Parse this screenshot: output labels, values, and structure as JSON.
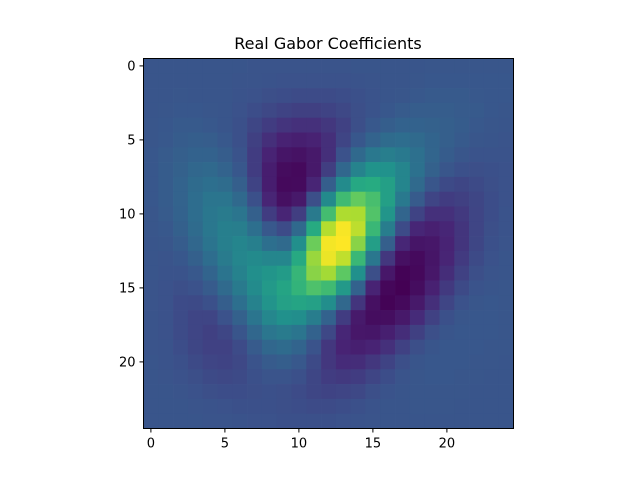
{
  "chart_data": {
    "type": "heatmap",
    "title": "Real Gabor Coefficients",
    "xlabel": "",
    "ylabel": "",
    "colormap": "viridis",
    "rows": 25,
    "cols": 25,
    "xlim": [
      -0.5,
      24.5
    ],
    "ylim": [
      24.5,
      -0.5
    ],
    "x_ticks": [
      0,
      5,
      10,
      15,
      20
    ],
    "y_ticks": [
      0,
      5,
      10,
      15,
      20
    ],
    "x_tick_labels": [
      "0",
      "5",
      "10",
      "15",
      "20"
    ],
    "y_tick_labels": [
      "0",
      "5",
      "10",
      "15",
      "20"
    ],
    "grid": false,
    "legend": false,
    "values": [
      [
        0.0,
        0.0,
        0.0,
        -0.0,
        -0.0,
        -0.0,
        -0.0,
        -0.001,
        -0.001,
        -0.001,
        -0.001,
        -0.001,
        -0.001,
        -0.001,
        -0.0,
        -0.0,
        -0.0,
        0.0,
        0.0,
        0.001,
        0.001,
        0.001,
        0.001,
        0.001,
        0.001
      ],
      [
        0.0,
        0.0,
        0.0,
        -0.0,
        -0.0,
        -0.0,
        -0.001,
        -0.001,
        -0.002,
        -0.003,
        -0.003,
        -0.003,
        -0.003,
        -0.003,
        -0.002,
        -0.001,
        -0.0,
        0.0,
        0.001,
        0.002,
        0.002,
        0.002,
        0.002,
        0.002,
        0.002
      ],
      [
        0.0,
        0.0,
        0.001,
        0.0,
        0.0,
        -0.0,
        -0.002,
        -0.003,
        -0.005,
        -0.006,
        -0.007,
        -0.007,
        -0.007,
        -0.006,
        -0.004,
        -0.002,
        -0.0,
        0.001,
        0.003,
        0.004,
        0.004,
        0.004,
        0.003,
        0.002,
        0.002
      ],
      [
        0.0,
        0.001,
        0.002,
        0.002,
        0.001,
        -0.0,
        -0.003,
        -0.006,
        -0.009,
        -0.012,
        -0.014,
        -0.014,
        -0.012,
        -0.009,
        -0.005,
        -0.002,
        0.002,
        0.005,
        0.007,
        0.007,
        0.007,
        0.005,
        0.004,
        0.002,
        0.001
      ],
      [
        0.001,
        0.002,
        0.004,
        0.004,
        0.003,
        0.0,
        -0.004,
        -0.01,
        -0.016,
        -0.021,
        -0.023,
        -0.023,
        -0.019,
        -0.013,
        -0.005,
        0.003,
        0.008,
        0.012,
        0.012,
        0.011,
        0.009,
        0.006,
        0.003,
        0.001,
        0.0
      ],
      [
        0.001,
        0.003,
        0.006,
        0.008,
        0.007,
        0.003,
        -0.004,
        -0.014,
        -0.024,
        -0.032,
        -0.035,
        -0.032,
        -0.024,
        -0.011,
        0.002,
        0.013,
        0.02,
        0.022,
        0.019,
        0.014,
        0.009,
        0.004,
        0.001,
        -0.0,
        -0.001
      ],
      [
        0.002,
        0.005,
        0.009,
        0.012,
        0.012,
        0.007,
        -0.002,
        -0.016,
        -0.031,
        -0.043,
        -0.046,
        -0.04,
        -0.024,
        -0.003,
        0.018,
        0.032,
        0.037,
        0.033,
        0.025,
        0.015,
        0.006,
        0.001,
        -0.002,
        -0.002,
        -0.002
      ],
      [
        0.002,
        0.006,
        0.011,
        0.016,
        0.018,
        0.013,
        0.002,
        -0.016,
        -0.036,
        -0.051,
        -0.053,
        -0.04,
        -0.015,
        0.016,
        0.042,
        0.056,
        0.055,
        0.043,
        0.026,
        0.011,
        0.001,
        -0.004,
        -0.005,
        -0.004,
        -0.003
      ],
      [
        0.002,
        0.006,
        0.013,
        0.02,
        0.024,
        0.021,
        0.009,
        -0.012,
        -0.036,
        -0.053,
        -0.052,
        -0.03,
        0.008,
        0.049,
        0.077,
        0.081,
        0.068,
        0.043,
        0.019,
        0.001,
        -0.008,
        -0.01,
        -0.008,
        -0.005,
        -0.003
      ],
      [
        0.002,
        0.006,
        0.013,
        0.022,
        0.029,
        0.029,
        0.018,
        -0.004,
        -0.03,
        -0.047,
        -0.04,
        -0.005,
        0.048,
        0.096,
        0.113,
        0.1,
        0.068,
        0.033,
        0.005,
        -0.011,
        -0.016,
        -0.014,
        -0.01,
        -0.006,
        -0.003
      ],
      [
        0.001,
        0.005,
        0.012,
        0.022,
        0.031,
        0.035,
        0.029,
        0.01,
        -0.016,
        -0.03,
        -0.015,
        0.034,
        0.098,
        0.141,
        0.14,
        0.105,
        0.058,
        0.015,
        -0.012,
        -0.023,
        -0.023,
        -0.018,
        -0.011,
        -0.006,
        -0.002
      ],
      [
        0.001,
        0.003,
        0.01,
        0.02,
        0.031,
        0.038,
        0.037,
        0.024,
        0.003,
        -0.007,
        0.018,
        0.08,
        0.143,
        0.166,
        0.146,
        0.093,
        0.036,
        -0.007,
        -0.029,
        -0.034,
        -0.029,
        -0.02,
        -0.011,
        -0.005,
        -0.002
      ],
      [
        0.0,
        0.001,
        0.006,
        0.016,
        0.028,
        0.038,
        0.043,
        0.038,
        0.024,
        0.019,
        0.052,
        0.116,
        0.165,
        0.168,
        0.127,
        0.067,
        0.009,
        -0.029,
        -0.043,
        -0.041,
        -0.031,
        -0.02,
        -0.01,
        -0.004,
        -0.001
      ],
      [
        -0.0,
        -0.001,
        0.002,
        0.01,
        0.022,
        0.035,
        0.044,
        0.048,
        0.044,
        0.044,
        0.079,
        0.133,
        0.162,
        0.147,
        0.093,
        0.031,
        -0.019,
        -0.047,
        -0.052,
        -0.043,
        -0.03,
        -0.017,
        -0.008,
        -0.003,
        -0.0
      ],
      [
        -0.0,
        -0.002,
        -0.002,
        0.003,
        0.014,
        0.028,
        0.041,
        0.052,
        0.058,
        0.064,
        0.091,
        0.127,
        0.137,
        0.11,
        0.053,
        -0.005,
        -0.041,
        -0.058,
        -0.054,
        -0.041,
        -0.025,
        -0.013,
        -0.005,
        -0.001,
        0.0
      ],
      [
        -0.001,
        -0.003,
        -0.005,
        -0.003,
        0.005,
        0.019,
        0.034,
        0.049,
        0.062,
        0.073,
        0.089,
        0.103,
        0.096,
        0.062,
        0.012,
        -0.031,
        -0.055,
        -0.06,
        -0.05,
        -0.033,
        -0.018,
        -0.008,
        -0.002,
        0.0,
        0.001
      ],
      [
        -0.001,
        -0.003,
        -0.007,
        -0.008,
        -0.004,
        0.008,
        0.024,
        0.041,
        0.057,
        0.069,
        0.073,
        0.069,
        0.051,
        0.017,
        -0.02,
        -0.047,
        -0.058,
        -0.053,
        -0.04,
        -0.024,
        -0.011,
        -0.003,
        0.001,
        0.002,
        0.001
      ],
      [
        -0.001,
        -0.003,
        -0.007,
        -0.011,
        -0.011,
        -0.003,
        0.011,
        0.029,
        0.045,
        0.054,
        0.051,
        0.036,
        0.012,
        -0.016,
        -0.039,
        -0.05,
        -0.049,
        -0.04,
        -0.026,
        -0.013,
        -0.004,
        0.001,
        0.002,
        0.002,
        0.001
      ],
      [
        -0.001,
        -0.003,
        -0.007,
        -0.011,
        -0.014,
        -0.01,
        0.0,
        0.016,
        0.03,
        0.035,
        0.029,
        0.012,
        -0.009,
        -0.029,
        -0.041,
        -0.042,
        -0.035,
        -0.025,
        -0.014,
        -0.005,
        0.0,
        0.002,
        0.002,
        0.002,
        0.001
      ],
      [
        -0.001,
        -0.002,
        -0.006,
        -0.01,
        -0.013,
        -0.013,
        -0.007,
        0.005,
        0.016,
        0.02,
        0.014,
        -0.002,
        -0.019,
        -0.031,
        -0.035,
        -0.031,
        -0.023,
        -0.013,
        -0.005,
        0.0,
        0.002,
        0.002,
        0.002,
        0.001,
        0.001
      ],
      [
        -0.0,
        -0.002,
        -0.004,
        -0.008,
        -0.011,
        -0.012,
        -0.009,
        -0.002,
        0.005,
        0.008,
        0.003,
        -0.008,
        -0.019,
        -0.026,
        -0.025,
        -0.019,
        -0.012,
        -0.005,
        -0.0,
        0.002,
        0.002,
        0.002,
        0.001,
        0.001,
        0.0
      ],
      [
        -0.0,
        -0.001,
        -0.003,
        -0.005,
        -0.008,
        -0.009,
        -0.008,
        -0.004,
        -0.001,
        -0.001,
        -0.004,
        -0.01,
        -0.016,
        -0.018,
        -0.016,
        -0.011,
        -0.006,
        -0.001,
        0.001,
        0.002,
        0.002,
        0.001,
        0.001,
        0.0,
        0.0
      ],
      [
        0.0,
        -0.0,
        -0.001,
        -0.003,
        -0.005,
        -0.006,
        -0.006,
        -0.005,
        -0.004,
        -0.005,
        -0.007,
        -0.01,
        -0.012,
        -0.011,
        -0.009,
        -0.005,
        -0.002,
        0.0,
        0.001,
        0.001,
        0.001,
        0.001,
        0.0,
        0.0,
        0.0
      ],
      [
        0.0,
        0.0,
        -0.0,
        -0.001,
        -0.002,
        -0.003,
        -0.004,
        -0.004,
        -0.004,
        -0.005,
        -0.006,
        -0.007,
        -0.007,
        -0.006,
        -0.004,
        -0.002,
        -0.0,
        0.0,
        0.001,
        0.001,
        0.001,
        0.0,
        0.0,
        0.0,
        0.0
      ],
      [
        0.0,
        0.0,
        0.0,
        -0.0,
        -0.001,
        -0.001,
        -0.002,
        -0.003,
        -0.003,
        -0.004,
        -0.004,
        -0.004,
        -0.004,
        -0.003,
        -0.002,
        -0.001,
        -0.0,
        0.0,
        0.0,
        0.0,
        0.0,
        0.0,
        0.0,
        0.0,
        0.0
      ]
    ]
  }
}
